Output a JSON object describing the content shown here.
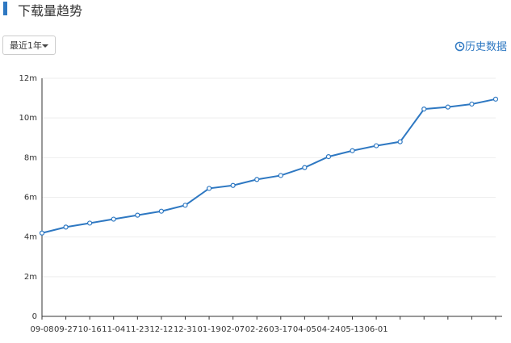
{
  "header": {
    "title": "下载量趋势"
  },
  "controls": {
    "range": "最近1年",
    "history": "历史数据"
  },
  "chart_data": {
    "type": "line",
    "categories": [
      "09-08",
      "09-27",
      "10-16",
      "11-04",
      "11-23",
      "12-12",
      "12-31",
      "01-19",
      "02-07",
      "02-26",
      "03-17",
      "04-05",
      "04-24",
      "05-13",
      "06-01",
      null,
      null,
      null,
      null,
      null
    ],
    "series": [
      {
        "name": "下载量",
        "color": "#2e78c2",
        "values": [
          4.2,
          4.5,
          4.7,
          4.9,
          5.1,
          5.3,
          5.6,
          6.45,
          6.6,
          6.9,
          7.1,
          7.5,
          8.05,
          8.35,
          8.6,
          8.8,
          10.45,
          10.55,
          10.7,
          10.95
        ]
      }
    ],
    "ylim": [
      0,
      12
    ],
    "yticks": [
      0,
      {
        "value": 2,
        "label": "2m"
      },
      {
        "value": 4,
        "label": "4m"
      },
      {
        "value": 6,
        "label": "6m"
      },
      {
        "value": 8,
        "label": "8m"
      },
      {
        "value": 10,
        "label": "10m"
      },
      {
        "value": 12,
        "label": "12m"
      }
    ],
    "grid": true
  }
}
